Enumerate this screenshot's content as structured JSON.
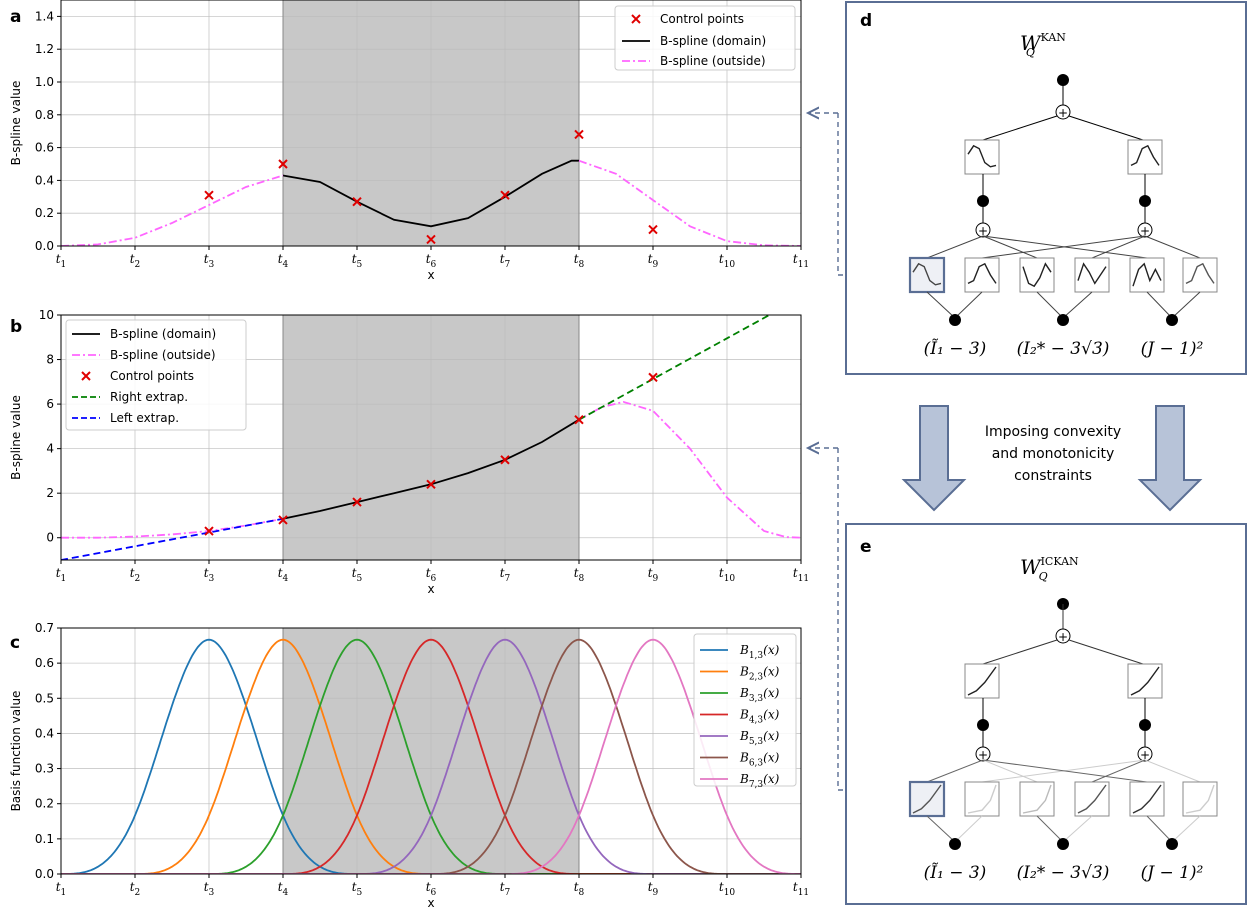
{
  "chart_data": [
    {
      "panel": "a",
      "type": "line",
      "xlabel": "x",
      "ylabel": "B-spline value",
      "ylim": [
        0,
        1.5
      ],
      "yticks": [
        "0.0",
        "0.2",
        "0.4",
        "0.6",
        "0.8",
        "1.0",
        "1.2",
        "1.4"
      ],
      "xticks": [
        "t1",
        "t2",
        "t3",
        "t4",
        "t5",
        "t6",
        "t7",
        "t8",
        "t9",
        "t10",
        "t11"
      ],
      "shaded_domain": [
        "t4",
        "t8"
      ],
      "grid": true,
      "legend_position": "top-right",
      "legend": [
        "Control points",
        "B-spline (domain)",
        "B-spline (outside)"
      ],
      "control_points": [
        [
          3,
          0.31
        ],
        [
          4,
          0.5
        ],
        [
          5,
          0.27
        ],
        [
          6,
          0.04
        ],
        [
          7,
          0.31
        ],
        [
          8,
          0.68
        ],
        [
          9,
          0.1
        ]
      ],
      "series": [
        {
          "name": "B-spline (domain)",
          "color": "#000000",
          "style": "solid",
          "points": [
            [
              4,
              0.43
            ],
            [
              4.5,
              0.39
            ],
            [
              5,
              0.27
            ],
            [
              5.5,
              0.16
            ],
            [
              6,
              0.12
            ],
            [
              6.5,
              0.17
            ],
            [
              7,
              0.3
            ],
            [
              7.5,
              0.44
            ],
            [
              7.9,
              0.52
            ],
            [
              8,
              0.52
            ]
          ]
        },
        {
          "name": "B-spline (outside)",
          "color": "#ff66ff",
          "style": "dashdot",
          "points": [
            [
              1,
              0
            ],
            [
              1.5,
              0.01
            ],
            [
              2,
              0.05
            ],
            [
              2.5,
              0.14
            ],
            [
              3,
              0.25
            ],
            [
              3.5,
              0.36
            ],
            [
              4,
              0.43
            ],
            [
              8,
              0.52
            ],
            [
              8.5,
              0.44
            ],
            [
              9,
              0.28
            ],
            [
              9.5,
              0.12
            ],
            [
              10,
              0.03
            ],
            [
              10.5,
              0.004
            ],
            [
              11,
              0
            ]
          ]
        }
      ]
    },
    {
      "panel": "b",
      "type": "line",
      "xlabel": "x",
      "ylabel": "B-spline value",
      "ylim": [
        -1,
        10
      ],
      "yticks": [
        "0",
        "2",
        "4",
        "6",
        "8",
        "10"
      ],
      "xticks": [
        "t1",
        "t2",
        "t3",
        "t4",
        "t5",
        "t6",
        "t7",
        "t8",
        "t9",
        "t10",
        "t11"
      ],
      "shaded_domain": [
        "t4",
        "t8"
      ],
      "grid": true,
      "legend_position": "top-left",
      "legend": [
        "B-spline (domain)",
        "B-spline (outside)",
        "Control points",
        "Right extrap.",
        "Left extrap."
      ],
      "control_points": [
        [
          3,
          0.3
        ],
        [
          4,
          0.8
        ],
        [
          5,
          1.6
        ],
        [
          6,
          2.4
        ],
        [
          7,
          3.5
        ],
        [
          8,
          5.3
        ],
        [
          9,
          7.2
        ]
      ],
      "series": [
        {
          "name": "B-spline (domain)",
          "color": "#000000",
          "style": "solid",
          "points": [
            [
              4,
              0.85
            ],
            [
              4.5,
              1.2
            ],
            [
              5,
              1.6
            ],
            [
              5.5,
              2.0
            ],
            [
              6,
              2.4
            ],
            [
              6.5,
              2.9
            ],
            [
              7,
              3.5
            ],
            [
              7.5,
              4.3
            ],
            [
              8,
              5.3
            ]
          ]
        },
        {
          "name": "B-spline (outside)",
          "color": "#ff66ff",
          "style": "dashdot",
          "points": [
            [
              1,
              0
            ],
            [
              1.5,
              0
            ],
            [
              2,
              0.05
            ],
            [
              2.5,
              0.15
            ],
            [
              3,
              0.3
            ],
            [
              3.5,
              0.55
            ],
            [
              4,
              0.85
            ],
            [
              8,
              5.3
            ],
            [
              8.3,
              5.85
            ],
            [
              8.6,
              6.1
            ],
            [
              9,
              5.7
            ],
            [
              9.5,
              4.0
            ],
            [
              10,
              1.8
            ],
            [
              10.5,
              0.3
            ],
            [
              10.8,
              0.03
            ],
            [
              11,
              0
            ]
          ]
        },
        {
          "name": "Right extrap.",
          "color": "#008000",
          "style": "dashed",
          "points": [
            [
              8,
              5.3
            ],
            [
              10.6,
              10.05
            ]
          ]
        },
        {
          "name": "Left extrap.",
          "color": "#0000ff",
          "style": "dashed",
          "points": [
            [
              1,
              -1.0
            ],
            [
              4,
              0.85
            ]
          ]
        }
      ]
    },
    {
      "panel": "c",
      "type": "line",
      "xlabel": "x",
      "ylabel": "Basis function value",
      "ylim": [
        0,
        0.7
      ],
      "yticks": [
        "0.0",
        "0.1",
        "0.2",
        "0.3",
        "0.4",
        "0.5",
        "0.6",
        "0.7"
      ],
      "xticks": [
        "t1",
        "t2",
        "t3",
        "t4",
        "t5",
        "t6",
        "t7",
        "t8",
        "t9",
        "t10",
        "t11"
      ],
      "shaded_domain": [
        "t4",
        "t8"
      ],
      "grid": true,
      "legend_position": "top-right",
      "series": [
        {
          "name": "B1,3(x)",
          "color": "#1f77b4",
          "peak_x": 3,
          "peak_y": 0.667
        },
        {
          "name": "B2,3(x)",
          "color": "#ff7f0e",
          "peak_x": 4,
          "peak_y": 0.667
        },
        {
          "name": "B3,3(x)",
          "color": "#2ca02c",
          "peak_x": 5,
          "peak_y": 0.667
        },
        {
          "name": "B4,3(x)",
          "color": "#d62728",
          "peak_x": 6,
          "peak_y": 0.667
        },
        {
          "name": "B5,3(x)",
          "color": "#9467bd",
          "peak_x": 7,
          "peak_y": 0.667
        },
        {
          "name": "B6,3(x)",
          "color": "#8c564b",
          "peak_x": 8,
          "peak_y": 0.667
        },
        {
          "name": "B7,3(x)",
          "color": "#e377c2",
          "peak_x": 9,
          "peak_y": 0.667
        }
      ]
    }
  ],
  "panel_labels": {
    "a": "a",
    "b": "b",
    "c": "c",
    "d": "d",
    "e": "e"
  },
  "diagram": {
    "d_title": "W",
    "d_sup": "KAN",
    "e_title": "W",
    "e_sup": "ICKAN",
    "sub": "Q",
    "inputs": [
      "(Ĩ₁ − 3)",
      "(I₂* − 3√3)",
      "(J − 1)²"
    ],
    "arrow_text": [
      "Imposing convexity",
      "and monotonicity",
      "constraints"
    ],
    "colors": {
      "frame": "#5a6e94",
      "arrow_fill": "#b7c3d8",
      "shade": "#c8c8c8"
    }
  }
}
